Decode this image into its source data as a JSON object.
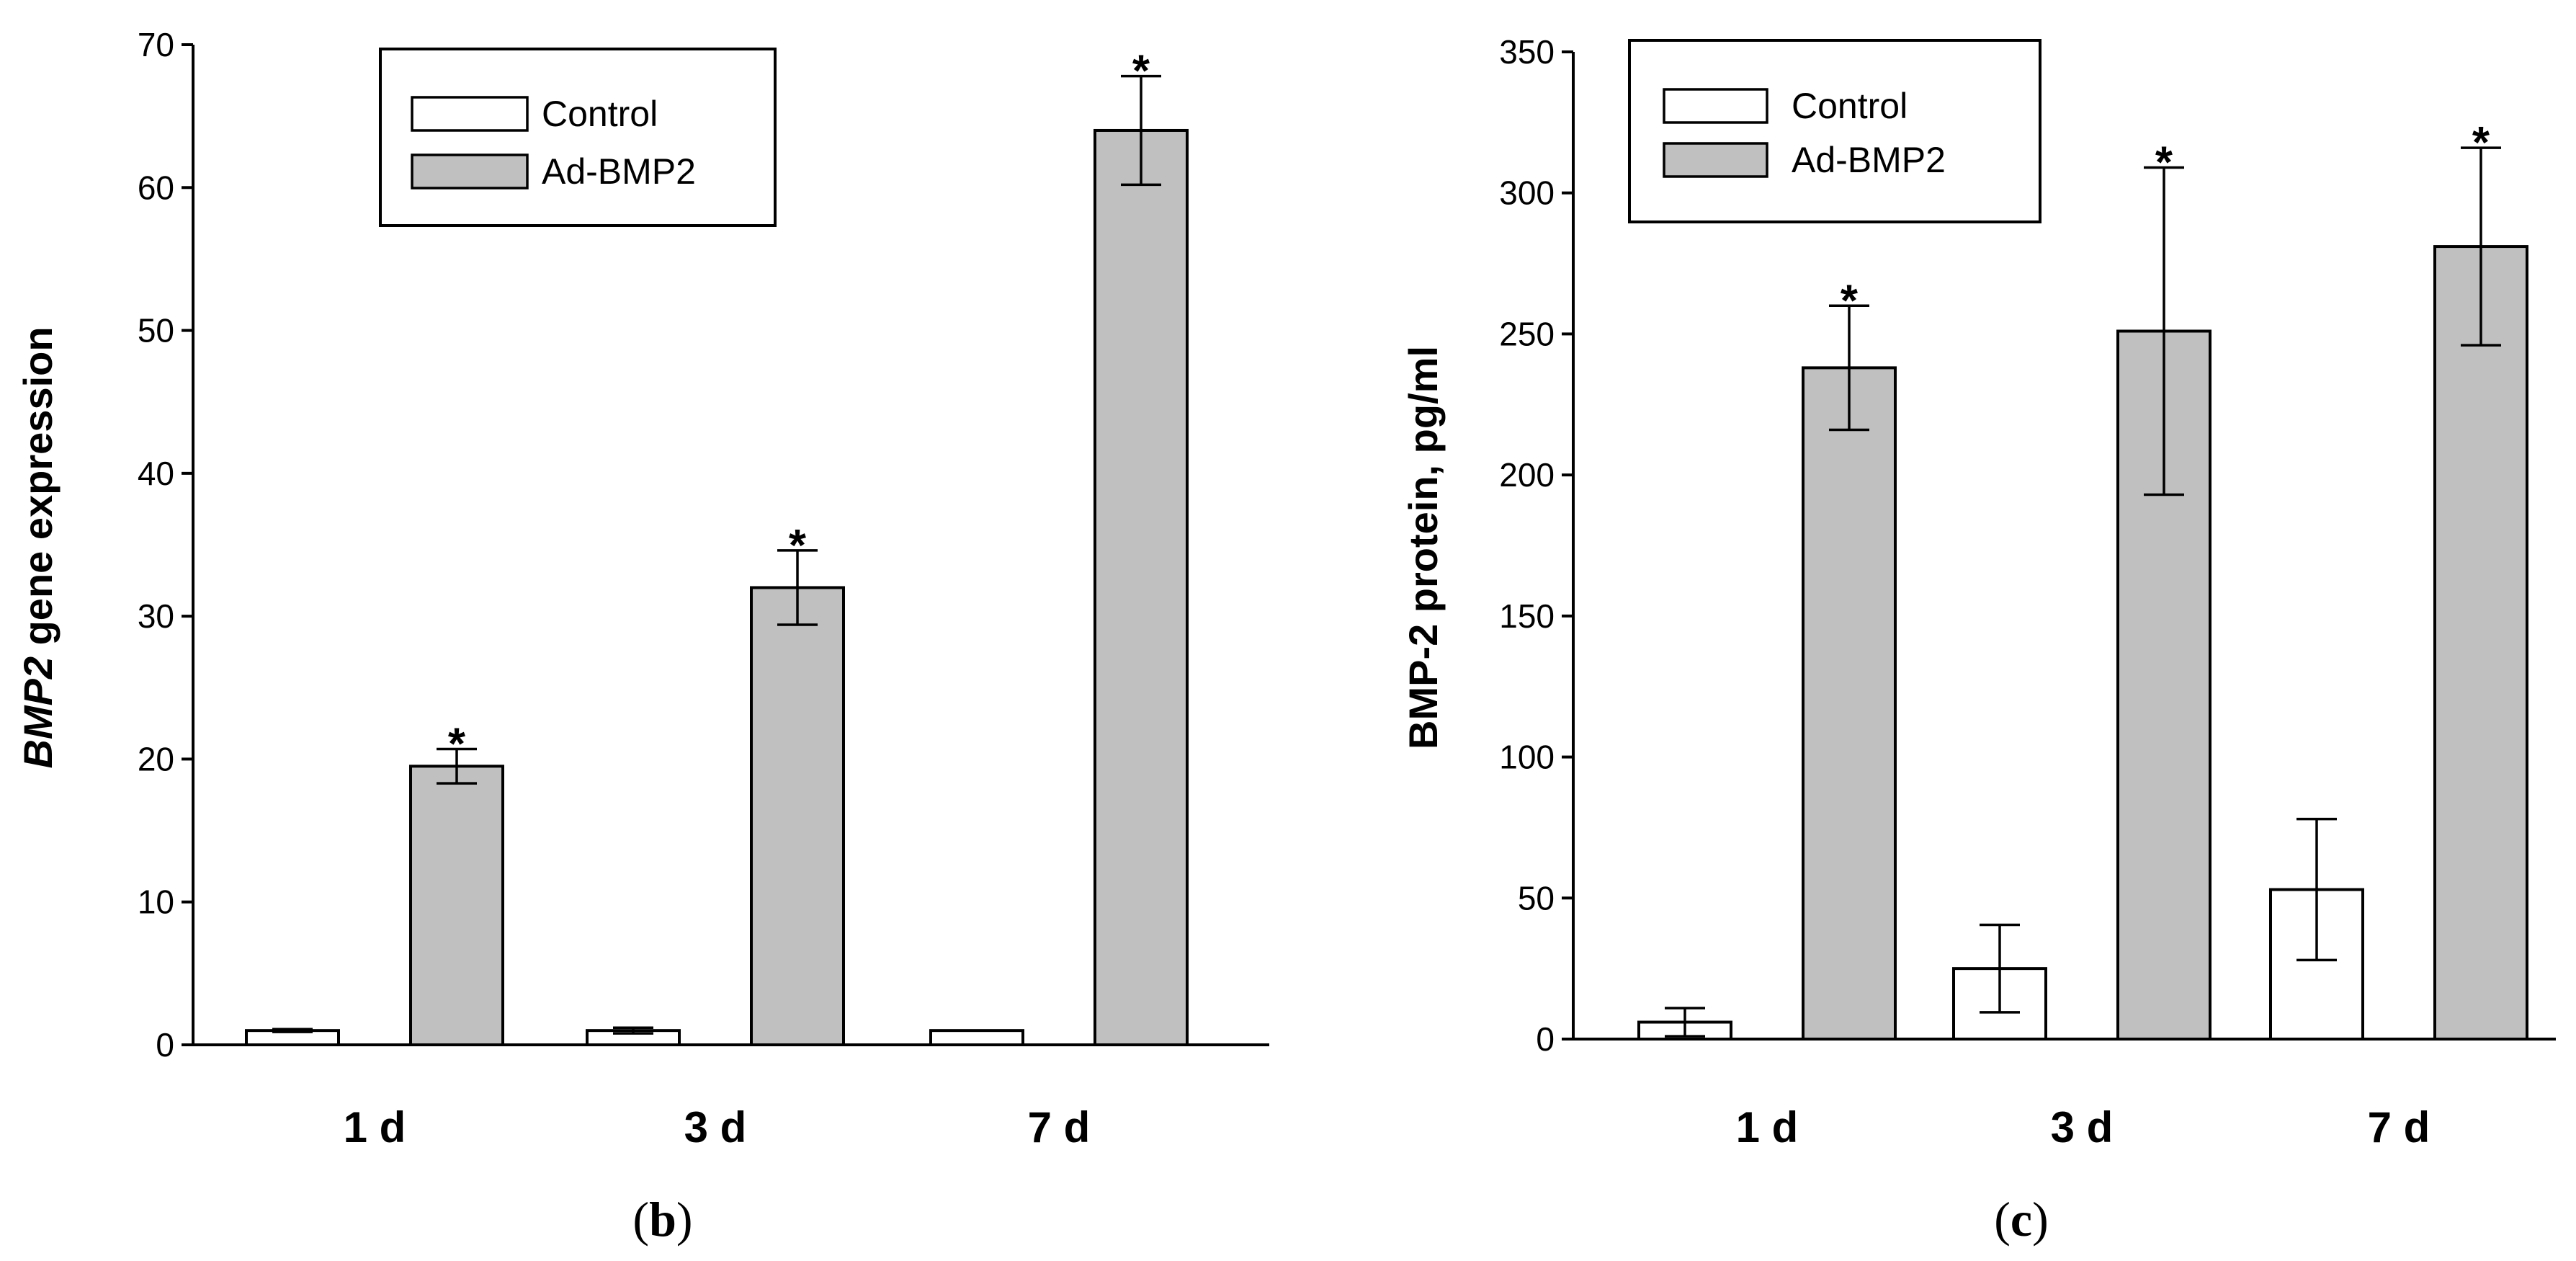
{
  "colors": {
    "control_fill": "#ffffff",
    "adbmp2_fill": "#c0c0c0",
    "stroke": "#000000"
  },
  "chart_data": [
    {
      "id": "b",
      "panel_label": "b",
      "type": "bar",
      "title": "",
      "xlabel": "",
      "ylabel_parts": [
        {
          "text": "BMP2",
          "italic": true
        },
        {
          "text": " gene expression",
          "italic": false
        }
      ],
      "categories": [
        "1 d",
        "3 d",
        "7 d"
      ],
      "ylim": [
        0,
        70
      ],
      "yticks": [
        0,
        10,
        20,
        30,
        40,
        50,
        60,
        70
      ],
      "legend": [
        "Control",
        "Ad-BMP2"
      ],
      "legend_position": "top-center",
      "series": [
        {
          "name": "Control",
          "values": [
            1.0,
            1.0,
            1.0
          ],
          "errors": [
            0.1,
            0.2,
            0.0
          ],
          "significant": [
            false,
            false,
            false
          ]
        },
        {
          "name": "Ad-BMP2",
          "values": [
            19.5,
            32.0,
            64.0
          ],
          "errors": [
            1.2,
            2.6,
            3.8
          ],
          "significant": [
            true,
            true,
            true
          ]
        }
      ],
      "significance_marker": "*"
    },
    {
      "id": "c",
      "panel_label": "c",
      "type": "bar",
      "title": "",
      "xlabel": "",
      "ylabel_parts": [
        {
          "text": "BMP-2 protein, pg/ml",
          "italic": false
        }
      ],
      "categories": [
        "1 d",
        "3 d",
        "7 d"
      ],
      "ylim": [
        0,
        350
      ],
      "yticks": [
        0,
        50,
        100,
        150,
        200,
        250,
        300,
        350
      ],
      "legend": [
        "Control",
        "Ad-BMP2"
      ],
      "legend_position": "top-left",
      "series": [
        {
          "name": "Control",
          "values": [
            6,
            25,
            53
          ],
          "errors": [
            5,
            15.5,
            25
          ],
          "significant": [
            false,
            false,
            false
          ]
        },
        {
          "name": "Ad-BMP2",
          "values": [
            238,
            251,
            281
          ],
          "errors": [
            22,
            58,
            35
          ],
          "significant": [
            true,
            true,
            true
          ]
        }
      ],
      "significance_marker": "*"
    }
  ]
}
